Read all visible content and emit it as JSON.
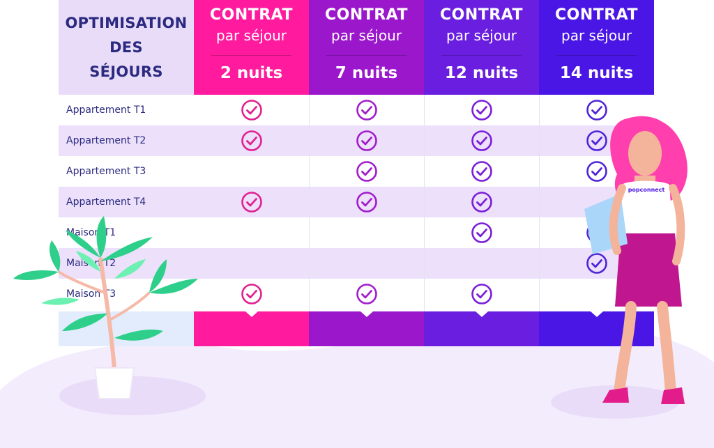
{
  "header_label": "OPTIMISATION\nDES\nSÉJOURS",
  "columns": [
    {
      "title": "CONTRAT",
      "subtitle": "par séjour",
      "nights": "2 nuits",
      "color": "#ff1a9e",
      "check_color": "#e0208f"
    },
    {
      "title": "CONTRAT",
      "subtitle": "par séjour",
      "nights": "7 nuits",
      "color": "#9b17cc",
      "check_color": "#a21ccb"
    },
    {
      "title": "CONTRAT",
      "subtitle": "par séjour",
      "nights": "12 nuits",
      "color": "#6a1ee0",
      "check_color": "#7a1ed8"
    },
    {
      "title": "CONTRAT",
      "subtitle": "par séjour",
      "nights": "14 nuits",
      "color": "#4a16e6",
      "check_color": "#4f24d6"
    }
  ],
  "rows": [
    {
      "label": "Appartement T1",
      "checks": [
        true,
        true,
        true,
        true
      ]
    },
    {
      "label": "Appartement T2",
      "checks": [
        true,
        true,
        true,
        true
      ]
    },
    {
      "label": "Appartement T3",
      "checks": [
        false,
        true,
        true,
        true
      ]
    },
    {
      "label": "Appartement T4",
      "checks": [
        true,
        true,
        true,
        false
      ]
    },
    {
      "label": "Maison T1",
      "checks": [
        false,
        false,
        true,
        true
      ]
    },
    {
      "label": "Maison T2",
      "checks": [
        false,
        false,
        false,
        true
      ]
    },
    {
      "label": "Maison T3",
      "checks": [
        true,
        true,
        true,
        false
      ]
    }
  ],
  "logo_text": "popconnect",
  "icons": {
    "check": "check-circle-icon"
  }
}
